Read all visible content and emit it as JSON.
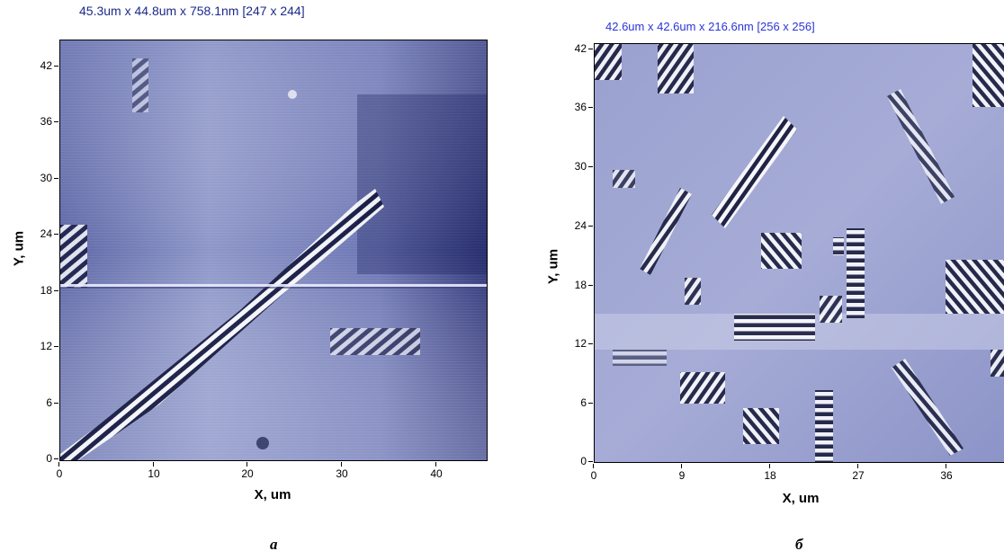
{
  "panels": [
    {
      "title": "45.3um x 44.8um x 758.1nm [247 x 244]",
      "title_color": "#1b2a8a",
      "xlabel": "X, um",
      "ylabel": "Y, um",
      "x_ticks": [
        "0",
        "10",
        "20",
        "30",
        "40"
      ],
      "y_ticks": [
        "0",
        "6",
        "12",
        "18",
        "24",
        "30",
        "36",
        "42"
      ],
      "xlim": [
        0,
        45.3
      ],
      "ylim": [
        0,
        44.8
      ],
      "letter": "а"
    },
    {
      "title": "42.6um x 42.6um x 216.6nm [256 x 256]",
      "title_color": "#2b34d6",
      "xlabel": "X, um",
      "ylabel": "Y, um",
      "x_ticks": [
        "0",
        "9",
        "18",
        "27",
        "36"
      ],
      "y_ticks": [
        "0",
        "6",
        "12",
        "18",
        "24",
        "30",
        "36",
        "42"
      ],
      "xlim": [
        0,
        42.6
      ],
      "ylim": [
        0,
        42.6
      ],
      "letter": "б"
    }
  ],
  "colors": {
    "surface": "#8a93c6",
    "surface_dark": "#2a2f6e",
    "surface_light": "#c8cce6"
  }
}
